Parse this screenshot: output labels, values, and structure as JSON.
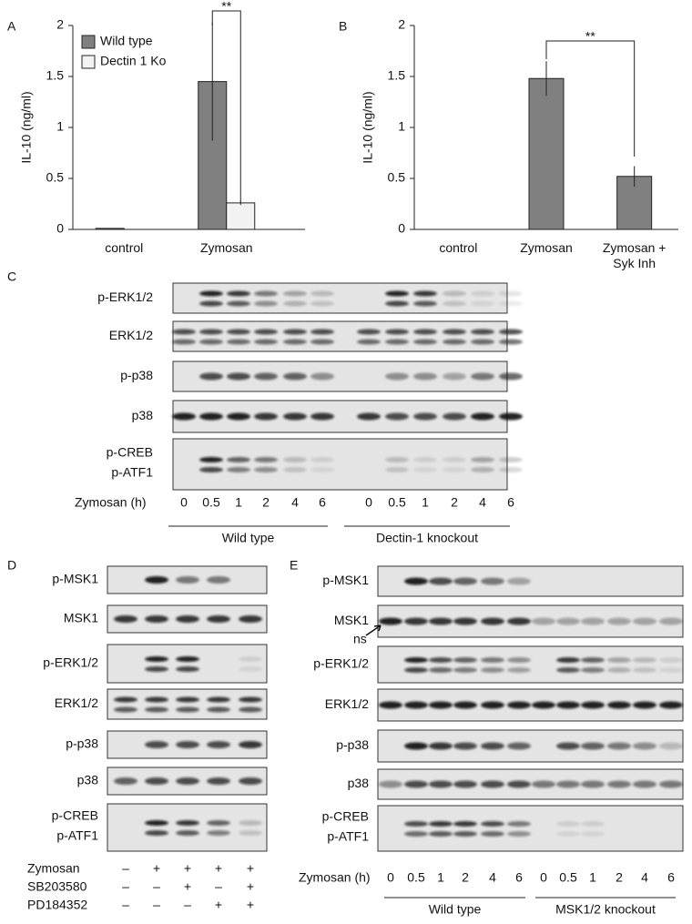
{
  "panel_letters": [
    "A",
    "B",
    "C",
    "D",
    "E"
  ],
  "chart_data": [
    {
      "type": "bar",
      "ylabel": "IL-10 (ng/ml)",
      "categories": [
        "control",
        "Zymosan"
      ],
      "series": [
        {
          "name": "Wild type",
          "color": "#808080",
          "values": [
            0.01,
            1.45
          ],
          "errors": [
            0,
            0.58
          ]
        },
        {
          "name": "Dectin 1 Ko",
          "color": "#f2f2f2",
          "values": [
            0,
            0.26
          ],
          "errors": [
            0,
            0.02
          ]
        }
      ],
      "ylim": [
        0,
        2
      ],
      "yticks": [
        0,
        0.5,
        1,
        1.5,
        2
      ],
      "legend": "upper left",
      "annotation": "**"
    },
    {
      "type": "bar",
      "ylabel": "IL-10 (ng/ml)",
      "categories": [
        "control",
        "Zymosan",
        "Zymosan + Syk Inh"
      ],
      "color": "#808080",
      "values": [
        0,
        1.48,
        0.52
      ],
      "errors": [
        0,
        0.17,
        0.1
      ],
      "ylim": [
        0,
        2
      ],
      "yticks": [
        0,
        0.5,
        1,
        1.5,
        2
      ],
      "annotation": "**"
    }
  ],
  "blot_c": {
    "rows": [
      [
        "p-ERK1/2"
      ],
      [
        "ERK1/2"
      ],
      [
        "p-p38"
      ],
      [
        "p38"
      ],
      [
        "p-CREB",
        "p-ATF1"
      ]
    ],
    "time_label": "Zymosan (h)",
    "lanes": [
      "0",
      "0.5",
      "1",
      "2",
      "4",
      "6",
      "0",
      "0.5",
      "1",
      "2",
      "4",
      "6"
    ],
    "groups": [
      "Wild type",
      "Dectin-1 knockout"
    ]
  },
  "blot_d": {
    "rows": [
      [
        "p-MSK1"
      ],
      [
        "MSK1"
      ],
      [
        "p-ERK1/2"
      ],
      [
        "ERK1/2"
      ],
      [
        "p-p38"
      ],
      [
        "p38"
      ],
      [
        "p-CREB",
        "p-ATF1"
      ]
    ],
    "treatments": [
      {
        "label": "Zymosan",
        "signs": [
          "–",
          "+",
          "+",
          "+",
          "+"
        ]
      },
      {
        "label": "SB203580",
        "signs": [
          "–",
          "–",
          "+",
          "–",
          "+"
        ]
      },
      {
        "label": "PD184352",
        "signs": [
          "–",
          "–",
          "–",
          "+",
          "+"
        ]
      }
    ]
  },
  "blot_e": {
    "rows": [
      [
        "p-MSK1"
      ],
      [
        "MSK1"
      ],
      [
        "p-ERK1/2"
      ],
      [
        "ERK1/2"
      ],
      [
        "p-p38"
      ],
      [
        "p38"
      ],
      [
        "p-CREB",
        "p-ATF1"
      ]
    ],
    "ns": "ns",
    "time_label": "Zymosan (h)",
    "lanes": [
      "0",
      "0.5",
      "1",
      "2",
      "4",
      "6",
      "0",
      "0.5",
      "1",
      "2",
      "4",
      "6"
    ],
    "groups": [
      "Wild type",
      "MSK1/2 knockout"
    ]
  }
}
